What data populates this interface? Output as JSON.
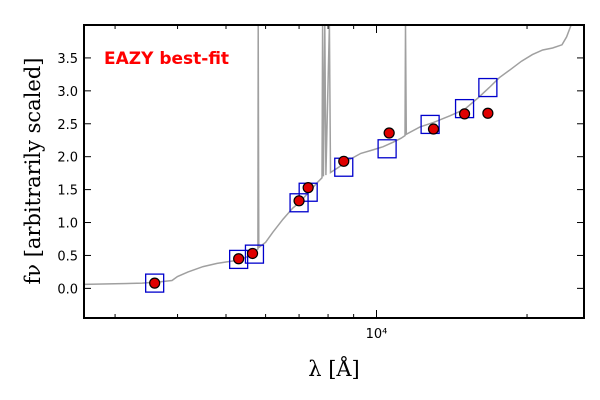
{
  "chart_data": {
    "type": "scatter",
    "xlabel": "λ [Å]",
    "ylabel": "fν [arbitrarily scaled]",
    "xscale": "log",
    "xlim": [
      2600,
      26000
    ],
    "ylim": [
      -0.45,
      4.0
    ],
    "xticks": [
      10000
    ],
    "xtick_labels": [
      "10⁴"
    ],
    "yticks": [
      0.0,
      0.5,
      1.0,
      1.5,
      2.0,
      2.5,
      3.0,
      3.5
    ],
    "ytick_labels": [
      "0.0",
      "0.5",
      "1.0",
      "1.5",
      "2.0",
      "2.5",
      "3.0",
      "3.5"
    ],
    "grid": false,
    "annotation": {
      "text": "EAZY best-fit",
      "color": "#ff0000"
    },
    "colors": {
      "template": "#a0a0a0",
      "model": "#0000cc",
      "observed": "#e00000"
    },
    "series": [
      {
        "kind": "model-squares",
        "points": [
          {
            "x": 3600,
            "y": 0.08
          },
          {
            "x": 5300,
            "y": 0.44
          },
          {
            "x": 5700,
            "y": 0.52
          },
          {
            "x": 7000,
            "y": 1.3
          },
          {
            "x": 7300,
            "y": 1.46
          },
          {
            "x": 8600,
            "y": 1.84
          },
          {
            "x": 10500,
            "y": 2.12
          },
          {
            "x": 12800,
            "y": 2.49
          },
          {
            "x": 15000,
            "y": 2.73
          },
          {
            "x": 16700,
            "y": 3.05
          }
        ]
      },
      {
        "kind": "observed-circles",
        "points": [
          {
            "x": 3600,
            "y": 0.08
          },
          {
            "x": 5300,
            "y": 0.45
          },
          {
            "x": 5650,
            "y": 0.53
          },
          {
            "x": 7000,
            "y": 1.33
          },
          {
            "x": 7300,
            "y": 1.53
          },
          {
            "x": 8600,
            "y": 1.93
          },
          {
            "x": 10600,
            "y": 2.36
          },
          {
            "x": 13000,
            "y": 2.42
          },
          {
            "x": 15000,
            "y": 2.65
          },
          {
            "x": 16700,
            "y": 2.66
          }
        ]
      },
      {
        "kind": "template-line",
        "points": [
          {
            "x": 2600,
            "y": 0.06
          },
          {
            "x": 3000,
            "y": 0.07
          },
          {
            "x": 3400,
            "y": 0.08
          },
          {
            "x": 3700,
            "y": 0.1
          },
          {
            "x": 3900,
            "y": 0.12
          },
          {
            "x": 4000,
            "y": 0.18
          },
          {
            "x": 4200,
            "y": 0.25
          },
          {
            "x": 4500,
            "y": 0.33
          },
          {
            "x": 4800,
            "y": 0.38
          },
          {
            "x": 5000,
            "y": 0.4
          },
          {
            "x": 5300,
            "y": 0.43
          },
          {
            "x": 5600,
            "y": 0.5
          },
          {
            "x": 5790,
            "y": 0.6
          },
          {
            "x": 5800,
            "y": 4.0
          },
          {
            "x": 5815,
            "y": 0.62
          },
          {
            "x": 6000,
            "y": 0.7
          },
          {
            "x": 6200,
            "y": 0.85
          },
          {
            "x": 6500,
            "y": 1.05
          },
          {
            "x": 6800,
            "y": 1.22
          },
          {
            "x": 7000,
            "y": 1.3
          },
          {
            "x": 7300,
            "y": 1.45
          },
          {
            "x": 7600,
            "y": 1.6
          },
          {
            "x": 7780,
            "y": 1.68
          },
          {
            "x": 7800,
            "y": 4.0
          },
          {
            "x": 7830,
            "y": 1.7
          },
          {
            "x": 7880,
            "y": 4.0
          },
          {
            "x": 7920,
            "y": 1.72
          },
          {
            "x": 8050,
            "y": 4.0
          },
          {
            "x": 8090,
            "y": 1.76
          },
          {
            "x": 8400,
            "y": 1.84
          },
          {
            "x": 8800,
            "y": 1.95
          },
          {
            "x": 9300,
            "y": 2.05
          },
          {
            "x": 9800,
            "y": 2.1
          },
          {
            "x": 10300,
            "y": 2.15
          },
          {
            "x": 10800,
            "y": 2.22
          },
          {
            "x": 11200,
            "y": 2.28
          },
          {
            "x": 11400,
            "y": 2.32
          },
          {
            "x": 11430,
            "y": 4.0
          },
          {
            "x": 11470,
            "y": 2.34
          },
          {
            "x": 12200,
            "y": 2.45
          },
          {
            "x": 13000,
            "y": 2.52
          },
          {
            "x": 14000,
            "y": 2.62
          },
          {
            "x": 15000,
            "y": 2.72
          },
          {
            "x": 16000,
            "y": 2.9
          },
          {
            "x": 16800,
            "y": 3.05
          },
          {
            "x": 17600,
            "y": 3.2
          },
          {
            "x": 18500,
            "y": 3.32
          },
          {
            "x": 19500,
            "y": 3.45
          },
          {
            "x": 20500,
            "y": 3.55
          },
          {
            "x": 21500,
            "y": 3.62
          },
          {
            "x": 22500,
            "y": 3.65
          },
          {
            "x": 23500,
            "y": 3.7
          },
          {
            "x": 24000,
            "y": 3.82
          },
          {
            "x": 24500,
            "y": 4.0
          }
        ]
      }
    ]
  }
}
